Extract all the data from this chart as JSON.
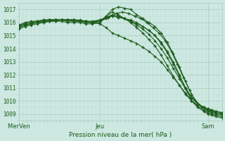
{
  "title": "Pression niveau de la mer( hPa )",
  "ylim": [
    1008.5,
    1017.5
  ],
  "yticks": [
    1009,
    1010,
    1011,
    1012,
    1013,
    1014,
    1015,
    1016,
    1017
  ],
  "xtick_labels": [
    "Mer​Ven",
    "Jeu",
    "Sam"
  ],
  "xtick_positions": [
    0.0,
    0.4,
    0.93
  ],
  "background_color": "#cce8e0",
  "grid_major_color": "#aaccc4",
  "grid_minor_color": "#bcddd6",
  "line_color": "#1e5c1e",
  "marker": "+",
  "markersize": 3.5,
  "linewidth": 0.8,
  "series": [
    {
      "x": [
        0.0,
        0.03,
        0.06,
        0.09,
        0.12,
        0.15,
        0.18,
        0.21,
        0.24,
        0.27,
        0.3,
        0.33,
        0.36,
        0.4,
        0.43,
        0.46,
        0.49,
        0.52,
        0.55,
        0.58,
        0.61,
        0.64,
        0.67,
        0.7,
        0.73,
        0.76,
        0.79,
        0.82,
        0.85,
        0.88,
        0.91,
        0.93,
        0.95,
        0.97,
        1.0
      ],
      "y": [
        1015.8,
        1015.9,
        1016.0,
        1016.1,
        1016.1,
        1016.2,
        1016.2,
        1016.2,
        1016.2,
        1016.2,
        1016.2,
        1016.1,
        1016.1,
        1016.2,
        1016.4,
        1016.6,
        1016.5,
        1016.3,
        1016.1,
        1015.9,
        1015.7,
        1015.4,
        1015.0,
        1014.5,
        1013.8,
        1013.0,
        1012.0,
        1011.0,
        1010.0,
        1009.5,
        1009.2,
        1009.0,
        1008.9,
        1008.8,
        1008.7
      ]
    },
    {
      "x": [
        0.0,
        0.03,
        0.06,
        0.09,
        0.12,
        0.15,
        0.18,
        0.21,
        0.24,
        0.27,
        0.3,
        0.33,
        0.36,
        0.4,
        0.43,
        0.46,
        0.49,
        0.52,
        0.55,
        0.58,
        0.61,
        0.64,
        0.67,
        0.7,
        0.73,
        0.76,
        0.79,
        0.82,
        0.85,
        0.88,
        0.91,
        0.93,
        0.95,
        0.97,
        1.0
      ],
      "y": [
        1015.7,
        1015.8,
        1015.9,
        1016.0,
        1016.1,
        1016.1,
        1016.2,
        1016.2,
        1016.2,
        1016.2,
        1016.1,
        1016.1,
        1016.0,
        1016.1,
        1016.5,
        1017.0,
        1017.2,
        1017.1,
        1017.0,
        1016.6,
        1016.3,
        1016.0,
        1015.7,
        1015.2,
        1014.5,
        1013.6,
        1012.6,
        1011.5,
        1010.5,
        1009.8,
        1009.5,
        1009.3,
        1009.2,
        1009.1,
        1009.0
      ]
    },
    {
      "x": [
        0.0,
        0.03,
        0.06,
        0.09,
        0.12,
        0.15,
        0.18,
        0.21,
        0.24,
        0.27,
        0.3,
        0.33,
        0.36,
        0.4,
        0.44,
        0.48,
        0.51,
        0.54,
        0.57,
        0.6,
        0.63,
        0.66,
        0.69,
        0.72,
        0.75,
        0.78,
        0.81,
        0.84,
        0.87,
        0.9,
        0.93,
        0.95,
        0.97,
        1.0
      ],
      "y": [
        1015.6,
        1015.8,
        1015.9,
        1016.0,
        1016.1,
        1016.2,
        1016.2,
        1016.2,
        1016.2,
        1016.2,
        1016.1,
        1016.1,
        1016.0,
        1016.1,
        1016.4,
        1016.7,
        1016.8,
        1016.7,
        1016.5,
        1016.3,
        1016.0,
        1015.6,
        1015.2,
        1014.6,
        1013.8,
        1012.8,
        1011.8,
        1010.8,
        1010.0,
        1009.5,
        1009.2,
        1009.1,
        1009.0,
        1008.9
      ]
    },
    {
      "x": [
        0.0,
        0.03,
        0.06,
        0.09,
        0.12,
        0.15,
        0.18,
        0.21,
        0.24,
        0.27,
        0.3,
        0.33,
        0.36,
        0.4,
        0.43,
        0.46,
        0.49,
        0.52,
        0.55,
        0.58,
        0.61,
        0.64,
        0.67,
        0.7,
        0.73,
        0.76,
        0.79,
        0.82,
        0.85,
        0.88,
        0.91,
        0.93,
        0.95,
        0.97,
        1.0
      ],
      "y": [
        1015.5,
        1015.7,
        1015.8,
        1015.9,
        1016.0,
        1016.1,
        1016.1,
        1016.2,
        1016.1,
        1016.1,
        1016.1,
        1016.0,
        1016.0,
        1015.9,
        1015.6,
        1015.2,
        1015.0,
        1014.8,
        1014.6,
        1014.4,
        1014.1,
        1013.8,
        1013.4,
        1013.0,
        1012.4,
        1011.8,
        1011.2,
        1010.6,
        1010.0,
        1009.6,
        1009.3,
        1009.1,
        1009.0,
        1008.9,
        1008.8
      ]
    },
    {
      "x": [
        0.0,
        0.03,
        0.06,
        0.09,
        0.12,
        0.15,
        0.18,
        0.21,
        0.24,
        0.27,
        0.3,
        0.33,
        0.36,
        0.4,
        0.43,
        0.46,
        0.49,
        0.52,
        0.55,
        0.58,
        0.61,
        0.64,
        0.67,
        0.7,
        0.73,
        0.76,
        0.79,
        0.82,
        0.85,
        0.88,
        0.91,
        0.93,
        0.95,
        0.97,
        1.0
      ],
      "y": [
        1015.8,
        1015.9,
        1016.0,
        1016.1,
        1016.2,
        1016.2,
        1016.2,
        1016.2,
        1016.2,
        1016.2,
        1016.1,
        1016.1,
        1016.0,
        1016.2,
        1016.4,
        1016.5,
        1016.4,
        1016.3,
        1016.2,
        1016.0,
        1015.7,
        1015.4,
        1015.0,
        1014.4,
        1013.7,
        1012.8,
        1011.9,
        1011.0,
        1010.3,
        1009.8,
        1009.5,
        1009.3,
        1009.2,
        1009.1,
        1009.0
      ]
    },
    {
      "x": [
        0.0,
        0.03,
        0.06,
        0.09,
        0.12,
        0.15,
        0.18,
        0.21,
        0.24,
        0.27,
        0.3,
        0.33,
        0.36,
        0.4,
        0.43,
        0.46,
        0.49,
        0.52,
        0.55,
        0.58,
        0.61,
        0.64,
        0.67,
        0.7,
        0.73,
        0.76,
        0.79,
        0.82,
        0.85,
        0.88,
        0.91,
        0.93,
        0.95,
        0.97,
        1.0
      ],
      "y": [
        1015.7,
        1015.8,
        1015.9,
        1016.0,
        1016.0,
        1016.1,
        1016.1,
        1016.1,
        1016.0,
        1016.0,
        1016.0,
        1015.9,
        1015.9,
        1016.0,
        1016.5,
        1016.8,
        1016.6,
        1016.3,
        1016.0,
        1015.6,
        1015.2,
        1014.7,
        1014.2,
        1013.5,
        1012.7,
        1011.9,
        1011.2,
        1010.5,
        1010.0,
        1009.7,
        1009.5,
        1009.4,
        1009.3,
        1009.2,
        1009.1
      ]
    },
    {
      "x": [
        0.0,
        0.03,
        0.06,
        0.09,
        0.12,
        0.15,
        0.18,
        0.21,
        0.24,
        0.27,
        0.3,
        0.33,
        0.36,
        0.4,
        0.43,
        0.46,
        0.49,
        0.52,
        0.55,
        0.58,
        0.61,
        0.64,
        0.67,
        0.7,
        0.73,
        0.76,
        0.79,
        0.82,
        0.85,
        0.88,
        0.91,
        0.93,
        0.95,
        0.97,
        1.0
      ],
      "y": [
        1015.8,
        1016.0,
        1016.1,
        1016.1,
        1016.2,
        1016.2,
        1016.2,
        1016.2,
        1016.2,
        1016.1,
        1016.1,
        1016.1,
        1016.0,
        1016.1,
        1016.3,
        1016.5,
        1016.4,
        1016.3,
        1016.1,
        1015.8,
        1015.5,
        1015.1,
        1014.6,
        1014.0,
        1013.3,
        1012.5,
        1011.7,
        1010.9,
        1010.2,
        1009.8,
        1009.5,
        1009.4,
        1009.3,
        1009.2,
        1009.1
      ]
    }
  ]
}
